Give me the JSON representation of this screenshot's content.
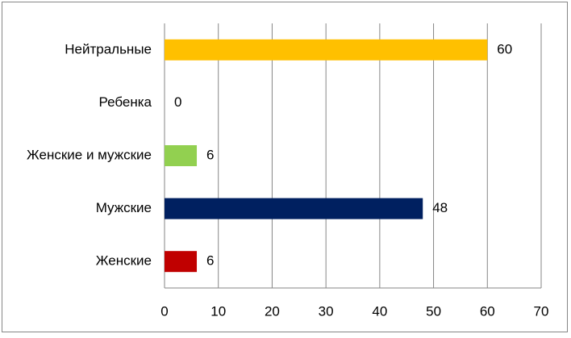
{
  "chart_data": {
    "type": "hbar",
    "categories": [
      "Нейтральные",
      "Ребенка",
      "Женские и  мужские",
      "Мужские",
      "Женские"
    ],
    "values": [
      60,
      0,
      6,
      48,
      6
    ],
    "colors": [
      "#ffc000",
      null,
      "#92d050",
      "#002060",
      "#c00000"
    ],
    "xlim": [
      0,
      70
    ],
    "xticks": [
      0,
      10,
      20,
      30,
      40,
      50,
      60,
      70
    ],
    "grid": true
  }
}
